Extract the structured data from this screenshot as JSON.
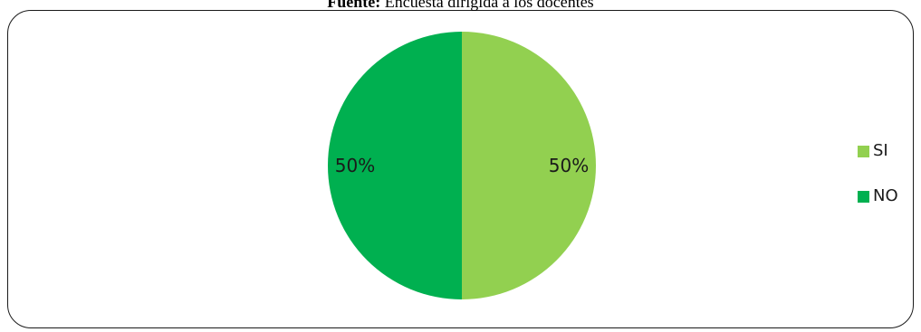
{
  "caption": {
    "label": "Fuente:",
    "text": " Encuesta dirigida a los docentes"
  },
  "chart_data": {
    "type": "pie",
    "categories": [
      "SI",
      "NO"
    ],
    "values": [
      50,
      50
    ],
    "data_labels": [
      "50%",
      "50%"
    ],
    "colors": [
      "#92d050",
      "#00b050"
    ],
    "start_angle": "12 o'clock",
    "direction": "clockwise",
    "legend": {
      "placement": "right",
      "entries": [
        "SI",
        "NO"
      ]
    }
  }
}
